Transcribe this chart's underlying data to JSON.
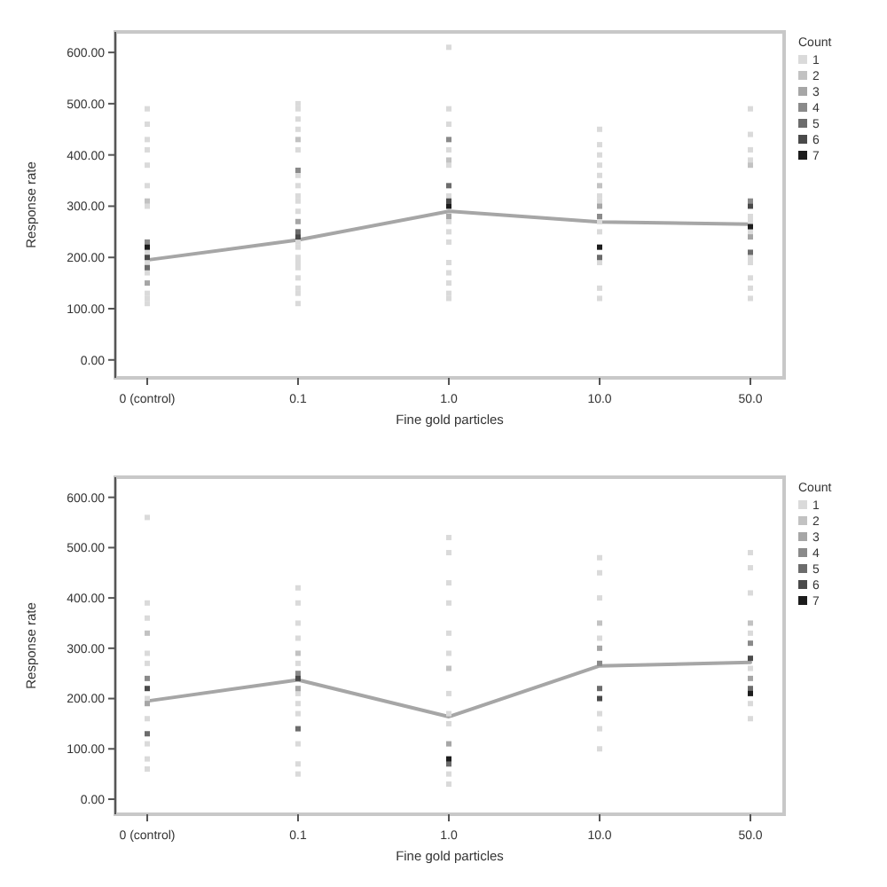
{
  "chart_data": [
    {
      "type": "scatter",
      "xlabel": "Fine gold particles",
      "ylabel": "Response rate",
      "categories": [
        "0 (control)",
        "0.1",
        "1.0",
        "10.0",
        "50.0"
      ],
      "ylim": [
        -35,
        640
      ],
      "yticks": [
        {
          "value": 0,
          "label": "0.00"
        },
        {
          "value": 100,
          "label": "100.00"
        },
        {
          "value": 200,
          "label": "200.00"
        },
        {
          "value": 300,
          "label": "300.00"
        },
        {
          "value": 400,
          "label": "400.00"
        },
        {
          "value": 500,
          "label": "500.00"
        },
        {
          "value": 600,
          "label": "600.00"
        }
      ],
      "legend": "right",
      "legend_title": "Count",
      "marker": "square",
      "line_style": "solid",
      "series": [
        {
          "type": "line",
          "marker": "none",
          "color": "#a6a6a6",
          "values": [
            195,
            234,
            290,
            269,
            265
          ]
        },
        {
          "name": "1",
          "color": "#dadada",
          "x": [
            "0 (control)",
            "0 (control)",
            "0 (control)",
            "0 (control)",
            "0 (control)",
            "0 (control)",
            "0 (control)",
            "0 (control)",
            "0 (control)",
            "0 (control)",
            "0 (control)",
            "0 (control)",
            "0 (control)",
            "0.1",
            "0.1",
            "0.1",
            "0.1",
            "0.1",
            "0.1",
            "0.1",
            "0.1",
            "0.1",
            "0.1",
            "0.1",
            "0.1",
            "0.1",
            "0.1",
            "0.1",
            "0.1",
            "0.1",
            "0.1",
            "0.1",
            "1.0",
            "1.0",
            "1.0",
            "1.0",
            "1.0",
            "1.0",
            "1.0",
            "1.0",
            "1.0",
            "1.0",
            "1.0",
            "1.0",
            "1.0",
            "1.0",
            "10.0",
            "10.0",
            "10.0",
            "10.0",
            "10.0",
            "10.0",
            "10.0",
            "10.0",
            "10.0",
            "10.0",
            "10.0",
            "10.0",
            "50.0",
            "50.0",
            "50.0",
            "50.0",
            "50.0",
            "50.0",
            "50.0",
            "50.0",
            "50.0",
            "50.0",
            "50.0",
            "50.0"
          ],
          "values": [
            490,
            460,
            430,
            410,
            380,
            340,
            300,
            210,
            190,
            170,
            130,
            120,
            110,
            500,
            490,
            470,
            450,
            410,
            360,
            340,
            320,
            310,
            290,
            230,
            220,
            200,
            190,
            180,
            160,
            140,
            130,
            110,
            610,
            490,
            460,
            410,
            380,
            320,
            270,
            250,
            230,
            190,
            170,
            150,
            130,
            120,
            450,
            420,
            400,
            380,
            360,
            320,
            310,
            270,
            250,
            190,
            140,
            120,
            490,
            440,
            410,
            390,
            280,
            270,
            250,
            200,
            190,
            160,
            140,
            120
          ]
        },
        {
          "name": "2",
          "color": "#c2c2c2",
          "x": [
            "0 (control)",
            "0.1",
            "1.0",
            "10.0",
            "50.0"
          ],
          "values": [
            310,
            430,
            390,
            340,
            380
          ]
        },
        {
          "name": "3",
          "color": "#a6a6a6",
          "x": [
            "0 (control)",
            "0.1",
            "1.0",
            "10.0",
            "50.0"
          ],
          "values": [
            150,
            270,
            280,
            300,
            240
          ]
        },
        {
          "name": "4",
          "color": "#8a8a8a",
          "x": [
            "0 (control)",
            "0.1",
            "1.0",
            "10.0",
            "50.0"
          ],
          "values": [
            230,
            370,
            430,
            280,
            310
          ]
        },
        {
          "name": "5",
          "color": "#6c6c6c",
          "x": [
            "0 (control)",
            "0.1",
            "1.0",
            "10.0",
            "50.0"
          ],
          "values": [
            180,
            250,
            340,
            200,
            210
          ]
        },
        {
          "name": "6",
          "color": "#4a4a4a",
          "x": [
            "0 (control)",
            "0.1",
            "1.0",
            "50.0"
          ],
          "values": [
            200,
            240,
            310,
            300
          ]
        },
        {
          "name": "7",
          "color": "#1c1c1c",
          "x": [
            "0 (control)",
            "1.0",
            "10.0",
            "50.0"
          ],
          "values": [
            220,
            300,
            220,
            260
          ]
        }
      ]
    },
    {
      "type": "scatter",
      "xlabel": "Fine gold particles",
      "ylabel": "Response rate",
      "categories": [
        "0 (control)",
        "0.1",
        "1.0",
        "10.0",
        "50.0"
      ],
      "ylim": [
        -30,
        640
      ],
      "yticks": [
        {
          "value": 0,
          "label": "0.00"
        },
        {
          "value": 100,
          "label": "100.00"
        },
        {
          "value": 200,
          "label": "200.00"
        },
        {
          "value": 300,
          "label": "300.00"
        },
        {
          "value": 400,
          "label": "400.00"
        },
        {
          "value": 500,
          "label": "500.00"
        },
        {
          "value": 600,
          "label": "600.00"
        }
      ],
      "legend": "right",
      "legend_title": "Count",
      "marker": "square",
      "line_style": "solid",
      "series": [
        {
          "type": "line",
          "marker": "none",
          "color": "#a6a6a6",
          "values": [
            195,
            237,
            164,
            265,
            272
          ]
        },
        {
          "name": "1",
          "color": "#dadada",
          "x": [
            "0 (control)",
            "0 (control)",
            "0 (control)",
            "0 (control)",
            "0 (control)",
            "0 (control)",
            "0 (control)",
            "0 (control)",
            "0 (control)",
            "0 (control)",
            "0.1",
            "0.1",
            "0.1",
            "0.1",
            "0.1",
            "0.1",
            "0.1",
            "0.1",
            "0.1",
            "0.1",
            "0.1",
            "1.0",
            "1.0",
            "1.0",
            "1.0",
            "1.0",
            "1.0",
            "1.0",
            "1.0",
            "1.0",
            "1.0",
            "1.0",
            "10.0",
            "10.0",
            "10.0",
            "10.0",
            "10.0",
            "10.0",
            "10.0",
            "50.0",
            "50.0",
            "50.0",
            "50.0",
            "50.0",
            "50.0",
            "50.0"
          ],
          "values": [
            560,
            390,
            360,
            290,
            270,
            200,
            160,
            110,
            80,
            60,
            420,
            390,
            350,
            320,
            270,
            210,
            190,
            170,
            110,
            70,
            50,
            520,
            490,
            430,
            390,
            330,
            290,
            210,
            170,
            150,
            50,
            30,
            480,
            450,
            400,
            320,
            170,
            140,
            100,
            490,
            460,
            410,
            330,
            260,
            190,
            160
          ]
        },
        {
          "name": "2",
          "color": "#c2c2c2",
          "x": [
            "0 (control)",
            "0.1",
            "1.0",
            "10.0",
            "50.0"
          ],
          "values": [
            330,
            290,
            260,
            350,
            350
          ]
        },
        {
          "name": "3",
          "color": "#a6a6a6",
          "x": [
            "0 (control)",
            "0.1",
            "1.0",
            "10.0",
            "50.0"
          ],
          "values": [
            190,
            220,
            110,
            300,
            240
          ]
        },
        {
          "name": "4",
          "color": "#8a8a8a",
          "x": [
            "0 (control)",
            "0.1",
            "10.0",
            "50.0"
          ],
          "values": [
            240,
            250,
            270,
            310
          ]
        },
        {
          "name": "5",
          "color": "#6c6c6c",
          "x": [
            "0 (control)",
            "0.1",
            "1.0",
            "10.0",
            "50.0"
          ],
          "values": [
            130,
            140,
            70,
            220,
            220
          ]
        },
        {
          "name": "6",
          "color": "#4a4a4a",
          "x": [
            "0 (control)",
            "0.1",
            "10.0",
            "50.0"
          ],
          "values": [
            220,
            240,
            200,
            280
          ]
        },
        {
          "name": "7",
          "color": "#1c1c1c",
          "x": [
            "1.0",
            "50.0"
          ],
          "values": [
            80,
            210
          ]
        }
      ]
    }
  ]
}
